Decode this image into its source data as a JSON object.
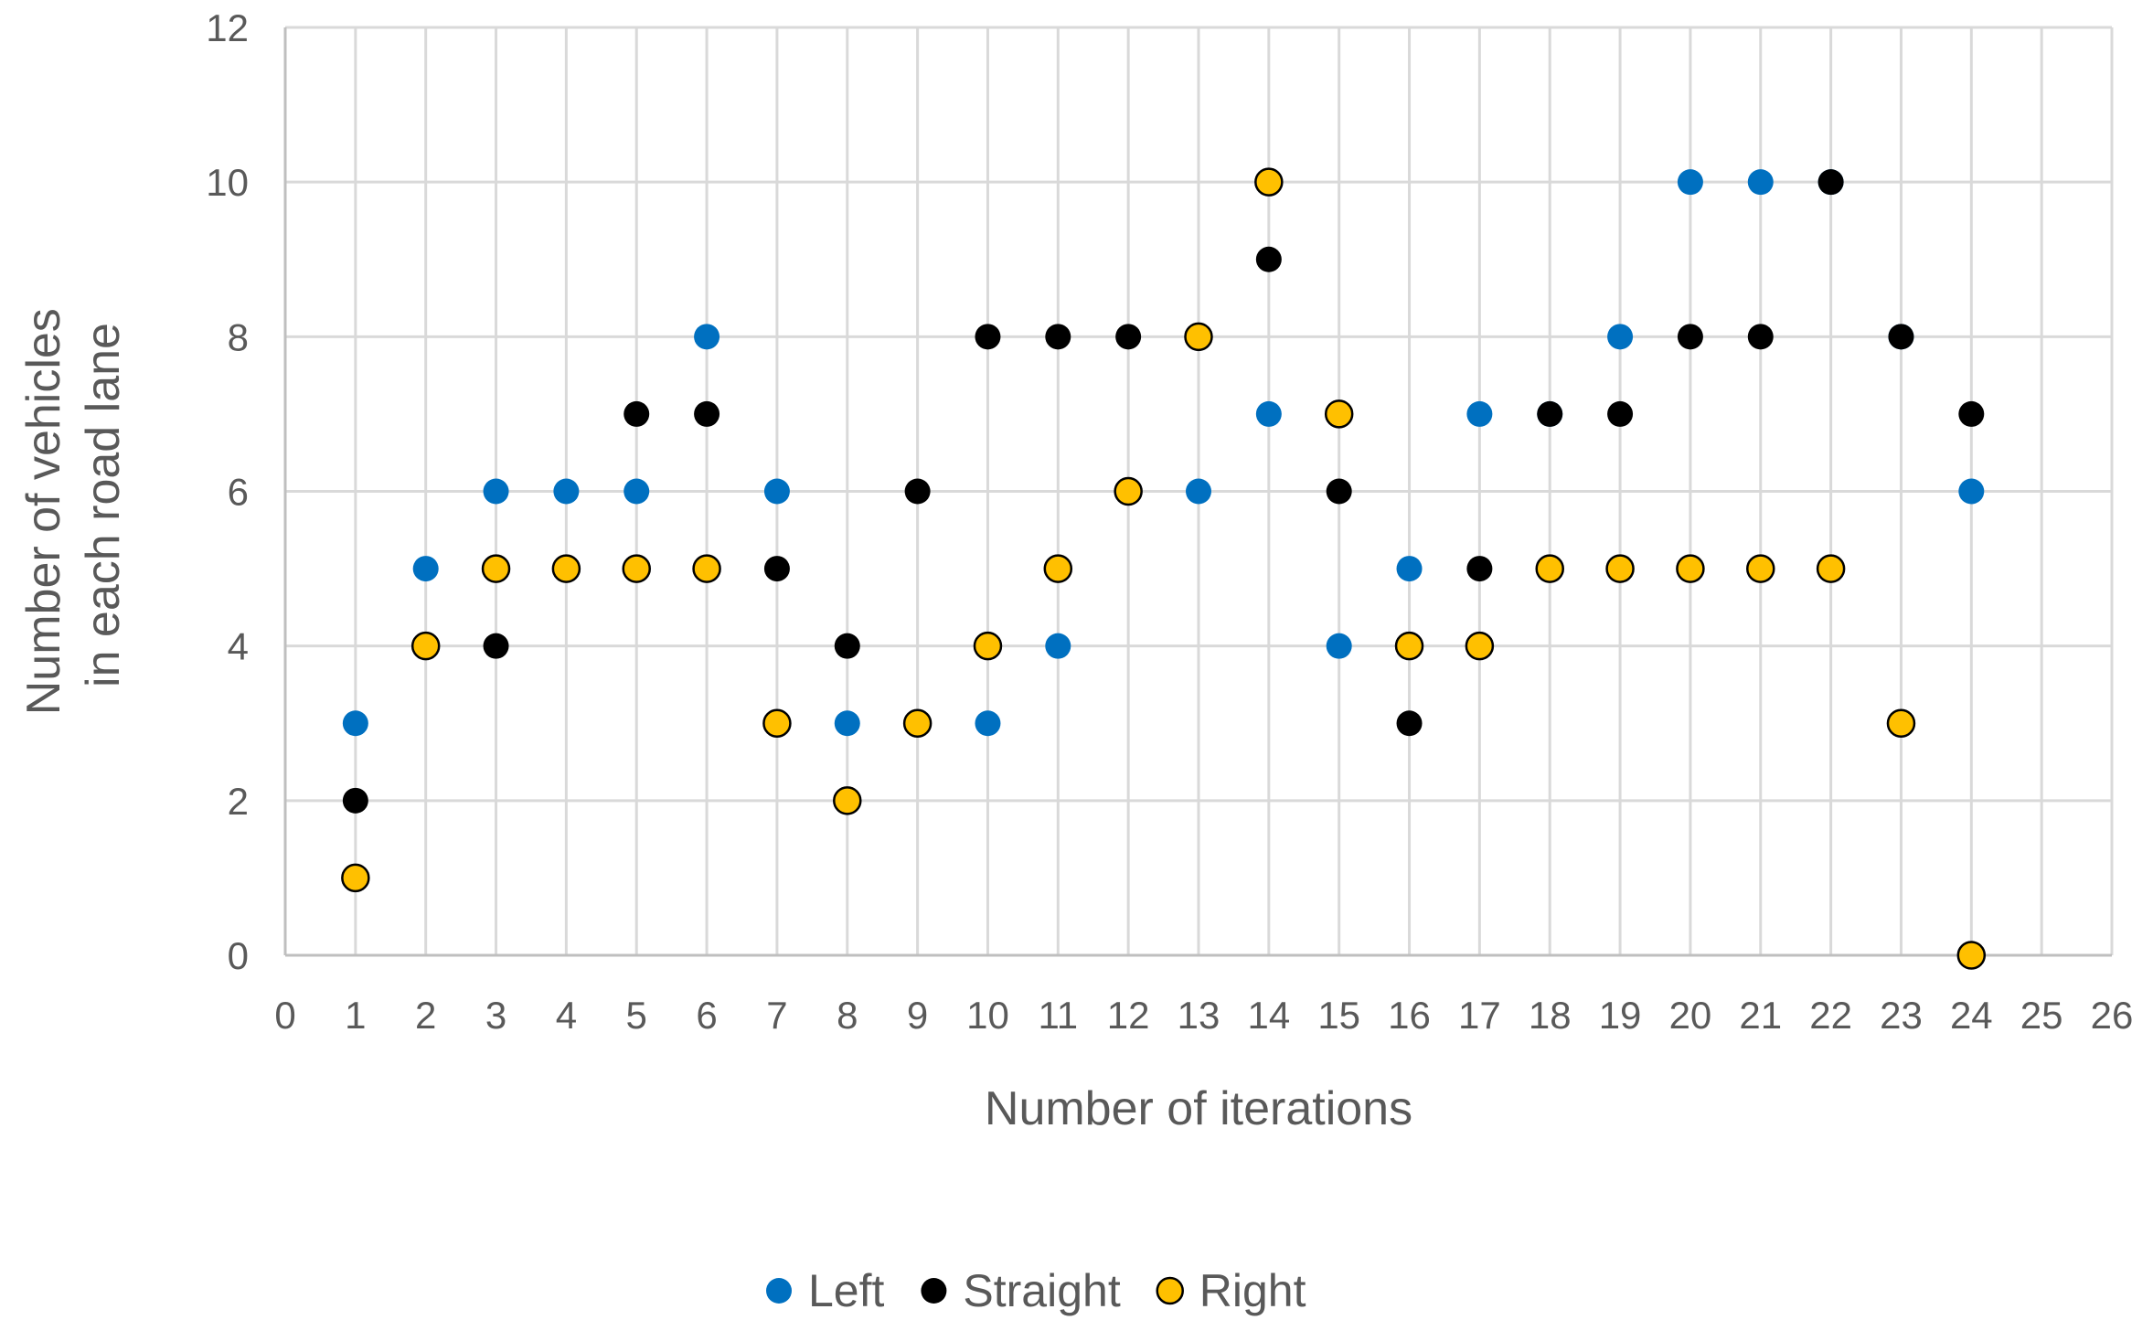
{
  "chart_data": {
    "type": "scatter",
    "xlabel": "Number of iterations",
    "ylabel": "Number of vehicles in each road lane",
    "ylabel_lines": [
      "Number of vehicles",
      "in each road lane"
    ],
    "xlim": [
      0,
      26
    ],
    "ylim": [
      0,
      12
    ],
    "xticks": [
      0,
      1,
      2,
      3,
      4,
      5,
      6,
      7,
      8,
      9,
      10,
      11,
      12,
      13,
      14,
      15,
      16,
      17,
      18,
      19,
      20,
      21,
      22,
      23,
      24,
      25,
      26
    ],
    "yticks": [
      0,
      2,
      4,
      6,
      8,
      10,
      12
    ],
    "grid": true,
    "legend_position": "bottom",
    "x": [
      1,
      2,
      3,
      4,
      5,
      6,
      7,
      8,
      9,
      10,
      11,
      12,
      13,
      14,
      15,
      16,
      17,
      18,
      19,
      20,
      21,
      22,
      23,
      24
    ],
    "series": [
      {
        "name": "Left",
        "color": "#0070c0",
        "marker": "circle",
        "values": [
          3,
          5,
          6,
          6,
          6,
          8,
          6,
          3,
          3,
          3,
          4,
          6,
          6,
          7,
          4,
          5,
          7,
          7,
          8,
          10,
          10,
          10,
          8,
          6
        ]
      },
      {
        "name": "Straight",
        "color": "#000000",
        "marker": "circle",
        "values": [
          2,
          4,
          4,
          5,
          7,
          7,
          5,
          4,
          6,
          8,
          8,
          8,
          8,
          9,
          6,
          3,
          5,
          7,
          7,
          8,
          8,
          10,
          8,
          7
        ]
      },
      {
        "name": "Right",
        "color": "#ffc000",
        "marker": "circle-outlined",
        "values": [
          1,
          4,
          5,
          5,
          5,
          5,
          3,
          2,
          3,
          4,
          5,
          6,
          8,
          10,
          7,
          4,
          4,
          5,
          5,
          5,
          5,
          5,
          3,
          0
        ]
      }
    ]
  }
}
